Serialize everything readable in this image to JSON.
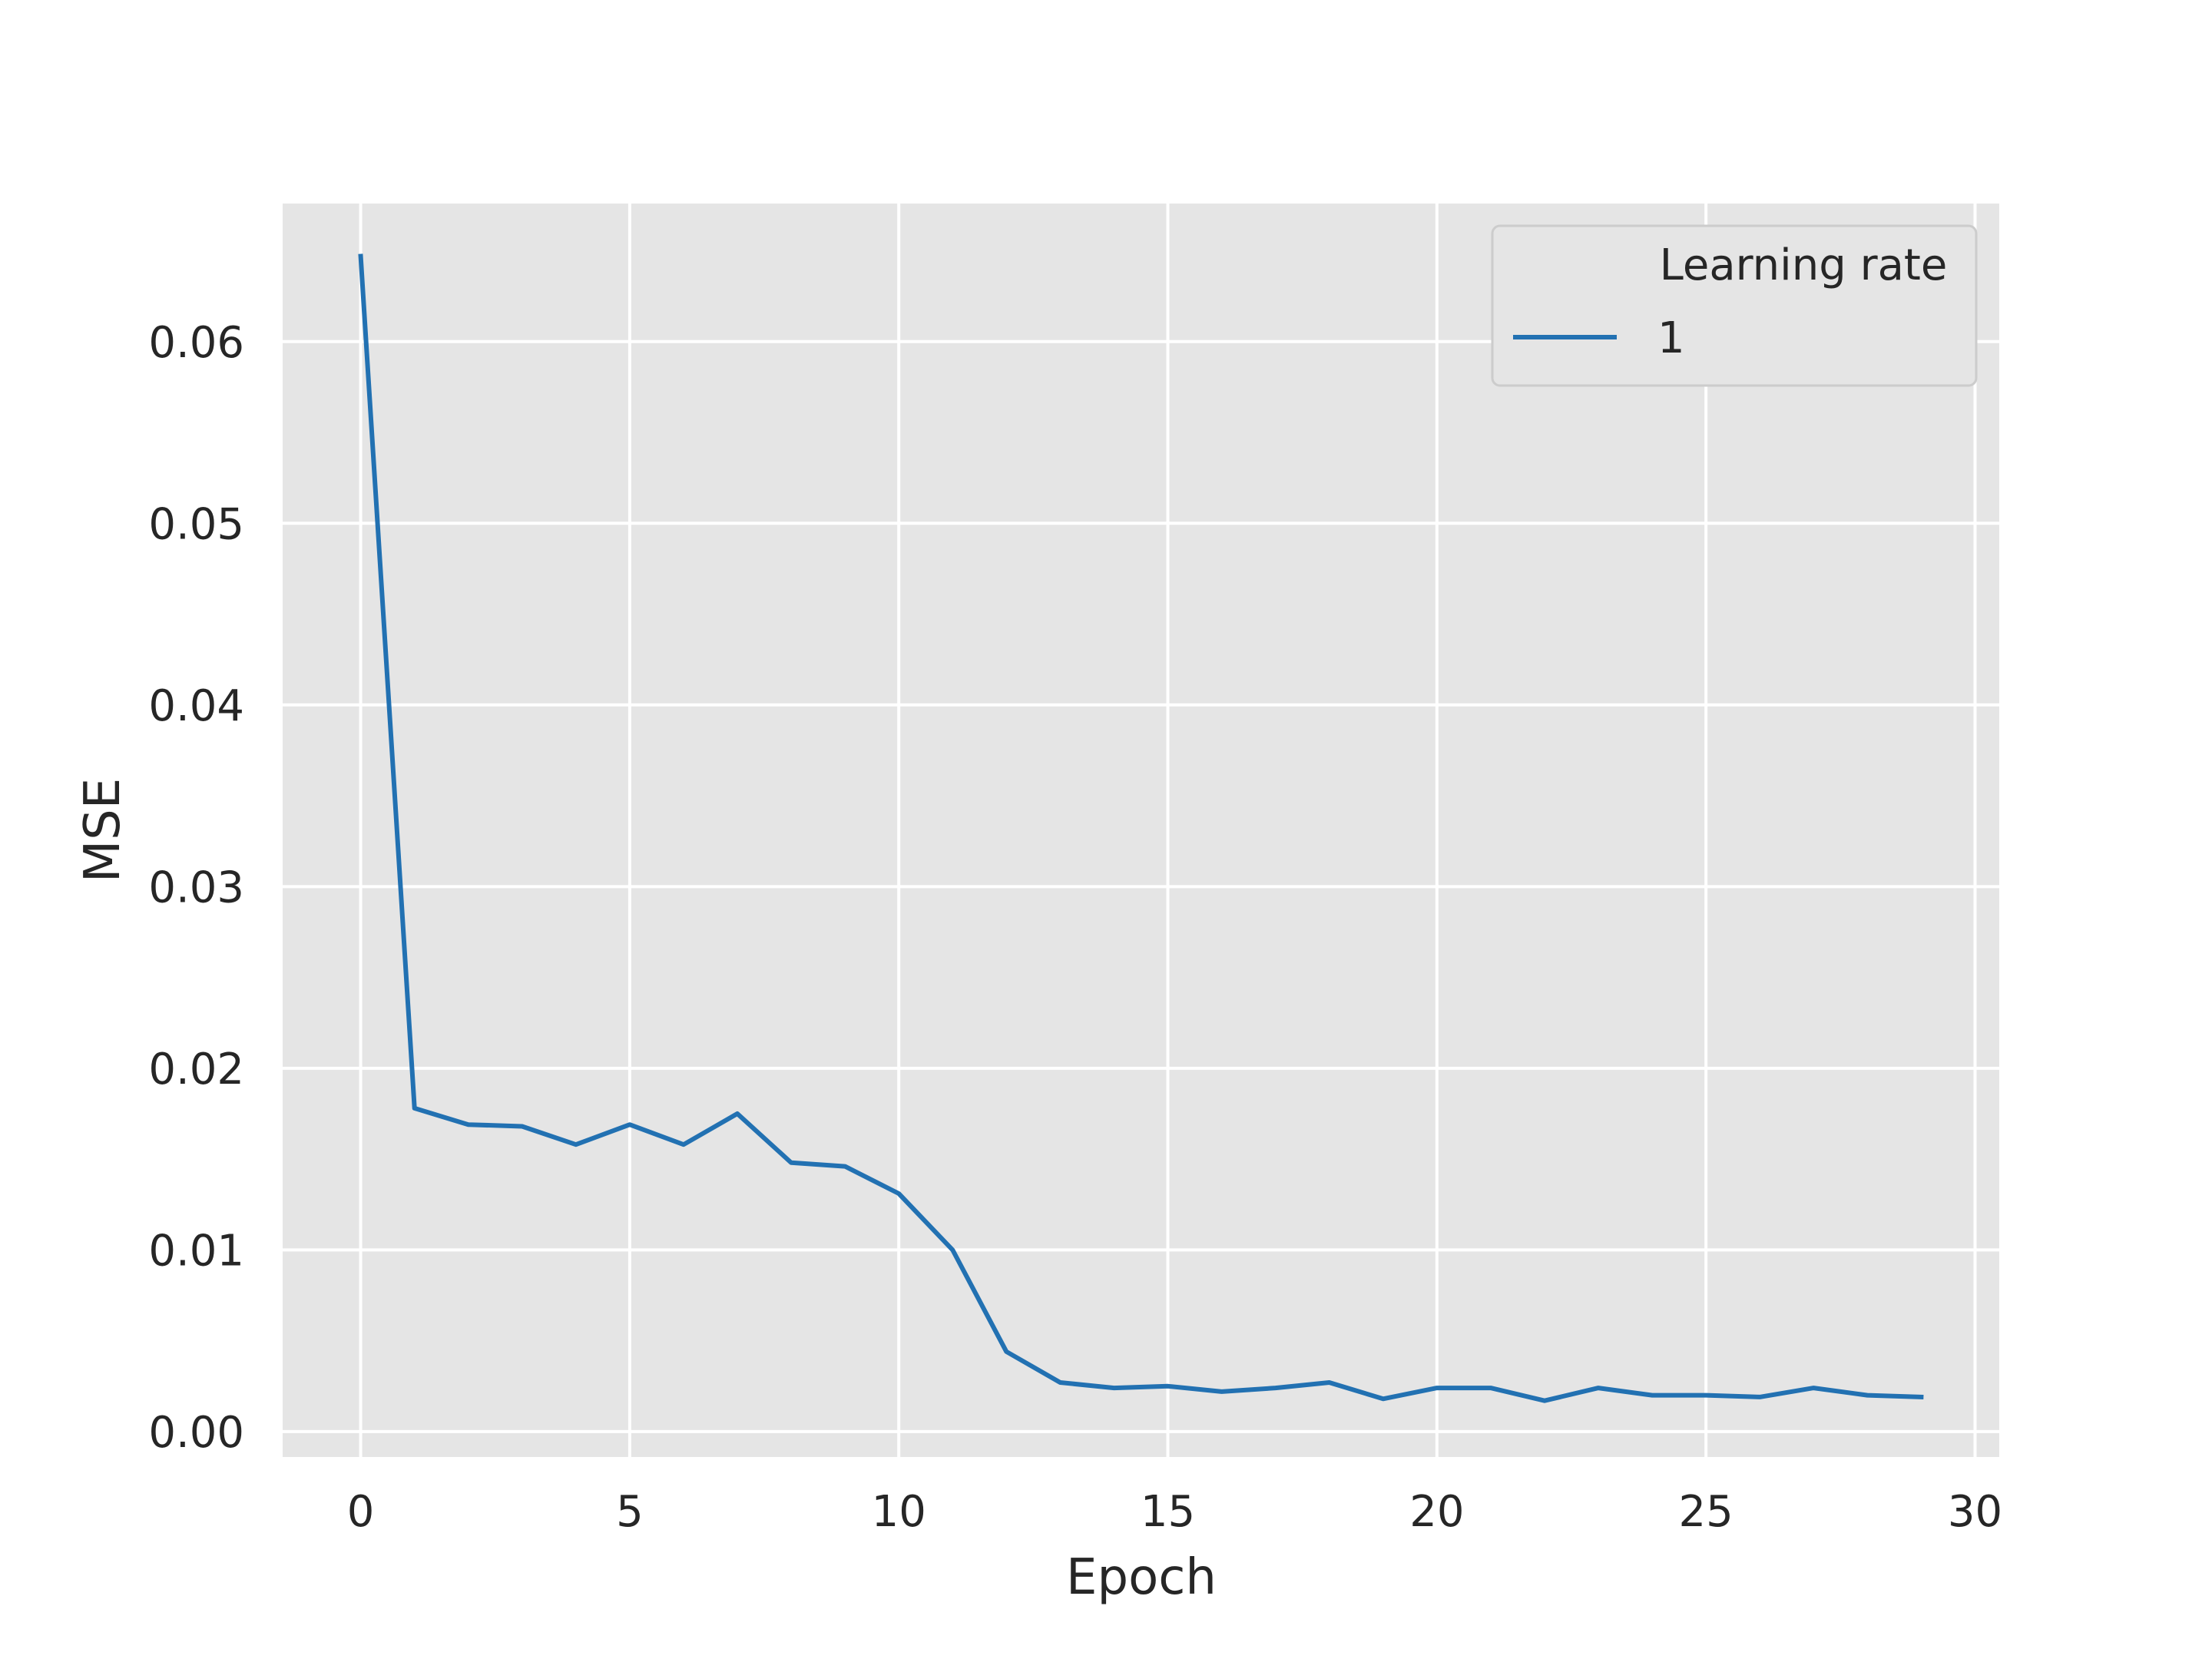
{
  "chart_data": {
    "type": "line",
    "title": "",
    "xlabel": "Epoch",
    "ylabel": "MSE",
    "xlim": [
      -1.45,
      30.45
    ],
    "ylim": [
      -0.0014,
      0.0676
    ],
    "xticks": [
      0,
      5,
      10,
      15,
      20,
      25,
      30
    ],
    "xtick_labels": [
      "0",
      "5",
      "10",
      "15",
      "20",
      "25",
      "30"
    ],
    "yticks": [
      0.0,
      0.01,
      0.02,
      0.03,
      0.04,
      0.05,
      0.06
    ],
    "ytick_labels": [
      "0.00",
      "0.01",
      "0.02",
      "0.03",
      "0.04",
      "0.05",
      "0.06"
    ],
    "grid": true,
    "background": "#e5e5e5",
    "grid_color": "#ffffff",
    "legend": {
      "title": "Learning rate",
      "placement": "top-right",
      "entries": [
        "1"
      ]
    },
    "series": [
      {
        "name": "1",
        "color": "#2271b2",
        "x": [
          0,
          1,
          2,
          3,
          4,
          5,
          6,
          7,
          8,
          9,
          10,
          11,
          12,
          13,
          14,
          15,
          16,
          17,
          18,
          19,
          20,
          21,
          22,
          23,
          24,
          25,
          26,
          27,
          28,
          29
        ],
        "y": [
          0.0647,
          0.0178,
          0.0169,
          0.0168,
          0.0158,
          0.0169,
          0.0158,
          0.0175,
          0.0148,
          0.0146,
          0.0131,
          0.01,
          0.0044,
          0.0027,
          0.0024,
          0.0025,
          0.0022,
          0.0024,
          0.0027,
          0.0018,
          0.0024,
          0.0024,
          0.0017,
          0.0024,
          0.002,
          0.002,
          0.0019,
          0.0024,
          0.002,
          0.0019
        ]
      }
    ]
  }
}
